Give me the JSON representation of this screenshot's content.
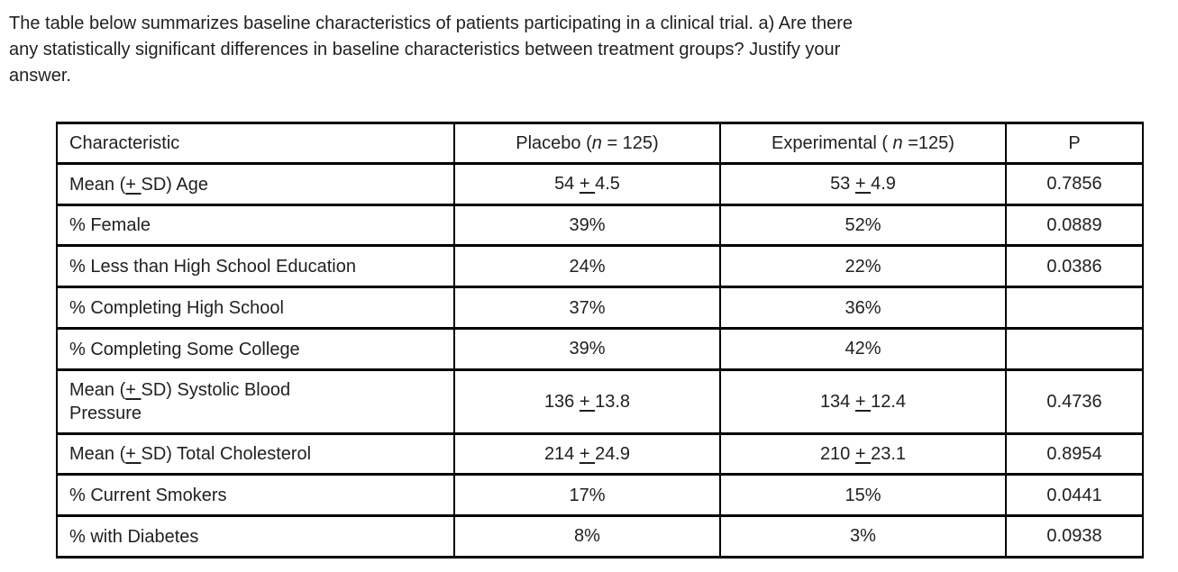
{
  "question": {
    "lines": [
      "The table below summarizes baseline characteristics of patients participating in a clinical trial. a) Are there",
      "any statistically significant differences in baseline characteristics between treatment groups? Justify your",
      "answer."
    ]
  },
  "table": {
    "columns": [
      {
        "label": "Characteristic"
      },
      {
        "pre": "Placebo (",
        "italic": "n",
        "post": " = 125)"
      },
      {
        "pre": "Experimental ( ",
        "italic": "n",
        "post": " =125)"
      },
      {
        "label": "P"
      }
    ],
    "rows": [
      {
        "characteristic": "Mean (± SD) Age",
        "placebo": "54 ± 4.5",
        "experimental": "53 ± 4.9",
        "p": "0.7856"
      },
      {
        "characteristic": "% Female",
        "placebo": "39%",
        "experimental": "52%",
        "p": "0.0889"
      },
      {
        "characteristic": "% Less than High School Education",
        "placebo": "24%",
        "experimental": "22%",
        "p": "0.0386"
      },
      {
        "characteristic": "% Completing High School",
        "placebo": "37%",
        "experimental": "36%",
        "p": ""
      },
      {
        "characteristic": "% Completing Some College",
        "placebo": "39%",
        "experimental": "42%",
        "p": ""
      },
      {
        "characteristic": "Mean (± SD) Systolic Blood Pressure",
        "placebo": "136 ± 13.8",
        "experimental": "134 ± 12.4",
        "p": "0.4736"
      },
      {
        "characteristic": "Mean (± SD) Total Cholesterol",
        "placebo": "214 ± 24.9",
        "experimental": "210 ± 23.1",
        "p": "0.8954"
      },
      {
        "characteristic": "% Current Smokers",
        "placebo": "17%",
        "experimental": "15%",
        "p": "0.0441"
      },
      {
        "characteristic": "% with Diabetes",
        "placebo": "8%",
        "experimental": "3%",
        "p": "0.0938"
      }
    ],
    "colors": {
      "text": "#202124",
      "border": "#000000",
      "background": "#ffffff"
    }
  }
}
